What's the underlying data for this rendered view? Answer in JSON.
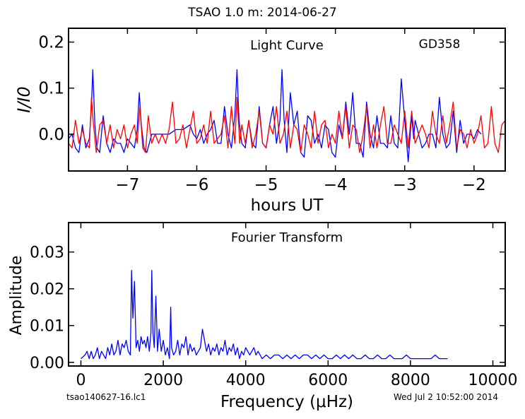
{
  "page_title": "TSAO 1.0 m:  2014-06-27",
  "footer": {
    "left": "tsao140627-16.lc1",
    "right": "Wed Jul  2 10:52:00 2014"
  },
  "colors": {
    "series1": "#0000ff",
    "series2": "#ff0000",
    "axes": "#000000"
  },
  "chart_data": [
    {
      "type": "line",
      "annotation": "Light Curve",
      "target_label": "GD358",
      "xlabel": "hours UT",
      "ylabel": "I/I0",
      "xlim": [
        -7.85,
        -1.55
      ],
      "ylim": [
        -0.08,
        0.23
      ],
      "xticks": [
        -7,
        -6,
        -5,
        -4,
        -3,
        -2
      ],
      "xtick_labels": [
        "−7",
        "−6",
        "−5",
        "−4",
        "−3",
        "−2"
      ],
      "yticks": [
        0.0,
        0.1,
        0.2
      ],
      "ytick_labels": [
        "0.0",
        "0.1",
        "0.2"
      ],
      "series": [
        {
          "color": "#0000ff",
          "x": [
            -7.85,
            -7.8,
            -7.75,
            -7.7,
            -7.65,
            -7.6,
            -7.55,
            -7.52,
            -7.5,
            -7.47,
            -7.44,
            -7.4,
            -7.35,
            -7.3,
            -7.25,
            -7.2,
            -7.15,
            -7.1,
            -7.05,
            -7.0,
            -6.95,
            -6.9,
            -6.86,
            -6.83,
            -6.8,
            -6.76,
            -6.72,
            -6.65,
            -6.6,
            -6.5,
            -6.4,
            -6.3,
            -6.2,
            -6.1,
            -6.05,
            -6.0,
            -5.95,
            -5.9,
            -5.85,
            -5.8,
            -5.75,
            -5.7,
            -5.65,
            -5.6,
            -5.55,
            -5.5,
            -5.45,
            -5.42,
            -5.39,
            -5.35,
            -5.3,
            -5.25,
            -5.2,
            -5.15,
            -5.1,
            -5.05,
            -5.0,
            -4.95,
            -4.9,
            -4.85,
            -4.8,
            -4.77,
            -4.74,
            -4.7,
            -4.65,
            -4.6,
            -4.55,
            -4.5,
            -4.45,
            -4.4,
            -4.35,
            -4.3,
            -4.25,
            -4.2,
            -4.15,
            -4.1,
            -4.05,
            -4.0,
            -3.95,
            -3.9,
            -3.85,
            -3.8,
            -3.75,
            -3.7,
            -3.65,
            -3.6,
            -3.55,
            -3.5,
            -3.45,
            -3.4,
            -3.35,
            -3.3,
            -3.25,
            -3.2,
            -3.15,
            -3.1,
            -3.05,
            -3.0,
            -2.95,
            -2.9,
            -2.87,
            -2.85,
            -2.8,
            -2.75,
            -2.7,
            -2.65,
            -2.6,
            -2.55,
            -2.5,
            -2.45,
            -2.4,
            -2.35,
            -2.3,
            -2.25,
            -2.2,
            -2.15,
            -2.1,
            -2.05,
            -2.0,
            -1.95,
            -1.9
          ],
          "y": [
            -0.01,
            0.0,
            -0.03,
            -0.04,
            0.02,
            -0.03,
            -0.01,
            0.06,
            0.14,
            0.02,
            -0.03,
            -0.04,
            0.04,
            -0.02,
            -0.04,
            -0.01,
            -0.02,
            -0.02,
            -0.04,
            -0.01,
            -0.02,
            -0.03,
            0.01,
            0.09,
            0.02,
            -0.03,
            -0.04,
            0.0,
            0.0,
            0.0,
            0.0,
            0.01,
            0.01,
            0.02,
            0.0,
            -0.01,
            0.01,
            -0.02,
            0.0,
            0.01,
            0.03,
            -0.02,
            -0.02,
            0.06,
            0.0,
            -0.03,
            0.04,
            0.14,
            0.03,
            -0.02,
            -0.03,
            0.03,
            -0.02,
            -0.03,
            0.06,
            -0.02,
            -0.03,
            0.02,
            0.06,
            -0.02,
            0.03,
            0.14,
            0.03,
            -0.04,
            0.09,
            0.02,
            0.05,
            -0.04,
            -0.05,
            0.04,
            0.03,
            -0.02,
            0.0,
            -0.03,
            0.02,
            0.01,
            -0.04,
            -0.05,
            0.02,
            -0.01,
            0.07,
            0.0,
            0.09,
            -0.02,
            -0.02,
            -0.05,
            0.07,
            0.0,
            -0.03,
            0.04,
            -0.02,
            -0.02,
            -0.03,
            0.04,
            -0.02,
            -0.03,
            0.12,
            0.03,
            -0.06,
            0.04,
            -0.01,
            0.03,
            0.0,
            -0.03,
            -0.02,
            0.0,
            0.0,
            -0.03,
            0.08,
            0.0,
            -0.03,
            -0.02,
            0.05,
            -0.04,
            0.03,
            -0.02,
            0.0,
            0.0,
            -0.01,
            0.01,
            0.0
          ]
        },
        {
          "color": "#ff0000",
          "x": [
            -7.85,
            -7.8,
            -7.75,
            -7.7,
            -7.65,
            -7.6,
            -7.55,
            -7.52,
            -7.49,
            -7.45,
            -7.4,
            -7.35,
            -7.3,
            -7.25,
            -7.2,
            -7.15,
            -7.1,
            -7.05,
            -7.0,
            -6.95,
            -6.9,
            -6.86,
            -6.82,
            -6.78,
            -6.74,
            -6.7,
            -6.65,
            -6.6,
            -6.55,
            -6.5,
            -6.45,
            -6.4,
            -6.35,
            -6.3,
            -6.25,
            -6.2,
            -6.15,
            -6.1,
            -6.05,
            -6.0,
            -5.95,
            -5.9,
            -5.85,
            -5.8,
            -5.75,
            -5.7,
            -5.65,
            -5.6,
            -5.55,
            -5.5,
            -5.45,
            -5.42,
            -5.38,
            -5.35,
            -5.3,
            -5.25,
            -5.2,
            -5.15,
            -5.1,
            -5.05,
            -5.0,
            -4.95,
            -4.9,
            -4.85,
            -4.8,
            -4.75,
            -4.7,
            -4.65,
            -4.6,
            -4.55,
            -4.5,
            -4.45,
            -4.4,
            -4.35,
            -4.3,
            -4.25,
            -4.2,
            -4.15,
            -4.1,
            -4.05,
            -4.0,
            -3.95,
            -3.9,
            -3.85,
            -3.8,
            -3.75,
            -3.7,
            -3.65,
            -3.6,
            -3.55,
            -3.5,
            -3.45,
            -3.4,
            -3.35,
            -3.3,
            -3.25,
            -3.2,
            -3.15,
            -3.1,
            -3.05,
            -3.0,
            -2.95,
            -2.9,
            -2.85,
            -2.8,
            -2.75,
            -2.7,
            -2.65,
            -2.6,
            -2.55,
            -2.5,
            -2.45,
            -2.4,
            -2.35,
            -2.3,
            -2.25,
            -2.2,
            -2.15,
            -2.1,
            -2.05,
            -2.0,
            -1.95,
            -1.9,
            -1.85,
            -1.8,
            -1.75,
            -1.7,
            -1.65,
            -1.6,
            -1.55
          ],
          "y": [
            -0.02,
            -0.03,
            0.03,
            -0.02,
            0.01,
            -0.02,
            -0.03,
            0.08,
            0.02,
            -0.04,
            0.02,
            0.03,
            -0.02,
            0.02,
            -0.03,
            0.01,
            -0.01,
            0.02,
            -0.03,
            0.0,
            0.02,
            -0.02,
            0.06,
            -0.03,
            -0.04,
            0.04,
            -0.02,
            0.0,
            -0.02,
            0.0,
            -0.02,
            0.01,
            0.07,
            -0.02,
            -0.01,
            0.02,
            -0.03,
            0.01,
            0.05,
            -0.02,
            -0.01,
            0.02,
            -0.02,
            0.05,
            -0.02,
            -0.01,
            0.0,
            0.04,
            -0.03,
            0.06,
            -0.02,
            0.08,
            -0.02,
            0.02,
            -0.02,
            0.03,
            -0.03,
            0.0,
            0.05,
            -0.02,
            -0.03,
            0.02,
            0.0,
            0.06,
            -0.02,
            0.0,
            0.05,
            -0.03,
            0.02,
            0.01,
            -0.04,
            0.02,
            0.0,
            -0.03,
            0.05,
            -0.02,
            0.02,
            0.03,
            -0.03,
            0.0,
            -0.02,
            0.05,
            -0.01,
            0.06,
            -0.03,
            0.02,
            0.01,
            -0.04,
            0.0,
            0.06,
            -0.03,
            0.02,
            -0.03,
            0.02,
            0.06,
            -0.02,
            -0.02,
            0.02,
            0.0,
            -0.02,
            0.05,
            -0.03,
            0.05,
            -0.02,
            0.0,
            0.02,
            0.0,
            -0.03,
            0.05,
            0.0,
            -0.02,
            0.04,
            -0.02,
            0.02,
            0.07,
            -0.03,
            0.01,
            0.0,
            -0.03,
            0.01,
            -0.02,
            0.0,
            0.04,
            -0.03,
            -0.02,
            0.06,
            -0.02,
            -0.04,
            0.02,
            0.03
          ]
        }
      ]
    },
    {
      "type": "line",
      "annotation": "Fourier Transform",
      "xlabel": "Frequency (μHz)",
      "ylabel": "Amplitude",
      "xlim": [
        -300,
        10300
      ],
      "ylim": [
        -0.001,
        0.038
      ],
      "xticks": [
        0,
        2000,
        4000,
        6000,
        8000,
        10000
      ],
      "xtick_labels": [
        "0",
        "2000",
        "4000",
        "6000",
        "8000",
        "10000"
      ],
      "yticks": [
        0.0,
        0.01,
        0.02,
        0.03
      ],
      "ytick_labels": [
        "0.00",
        "0.01",
        "0.02",
        "0.03"
      ],
      "series": [
        {
          "color": "#0000ff",
          "x": [
            0,
            100,
            150,
            200,
            250,
            300,
            350,
            400,
            450,
            500,
            550,
            600,
            650,
            700,
            750,
            800,
            850,
            900,
            950,
            1000,
            1050,
            1100,
            1150,
            1200,
            1230,
            1260,
            1300,
            1340,
            1380,
            1420,
            1460,
            1500,
            1540,
            1580,
            1620,
            1660,
            1700,
            1720,
            1750,
            1780,
            1820,
            1860,
            1900,
            1950,
            2000,
            2050,
            2100,
            2150,
            2180,
            2200,
            2250,
            2300,
            2350,
            2400,
            2450,
            2500,
            2550,
            2600,
            2650,
            2700,
            2750,
            2800,
            2850,
            2900,
            2950,
            3000,
            3050,
            3100,
            3150,
            3200,
            3250,
            3300,
            3350,
            3400,
            3450,
            3500,
            3550,
            3600,
            3650,
            3700,
            3750,
            3800,
            3850,
            3900,
            3950,
            4000,
            4050,
            4100,
            4150,
            4200,
            4250,
            4300,
            4400,
            4500,
            4600,
            4700,
            4800,
            4900,
            5000,
            5100,
            5200,
            5300,
            5400,
            5500,
            5600,
            5700,
            5800,
            5900,
            6000,
            6100,
            6200,
            6300,
            6400,
            6500,
            6600,
            6700,
            6800,
            6900,
            7000,
            7100,
            7200,
            7300,
            7400,
            7500,
            7600,
            7700,
            7800,
            7900,
            8000,
            8100,
            8200,
            8300,
            8400,
            8500,
            8600,
            8700,
            8800,
            8900
          ],
          "y": [
            0.001,
            0.002,
            0.003,
            0.001,
            0.003,
            0.001,
            0.002,
            0.004,
            0.001,
            0.003,
            0.002,
            0.001,
            0.004,
            0.002,
            0.005,
            0.002,
            0.003,
            0.006,
            0.002,
            0.005,
            0.004,
            0.006,
            0.003,
            0.002,
            0.025,
            0.012,
            0.022,
            0.004,
            0.006,
            0.003,
            0.007,
            0.005,
            0.006,
            0.004,
            0.007,
            0.003,
            0.008,
            0.025,
            0.008,
            0.004,
            0.018,
            0.003,
            0.009,
            0.003,
            0.006,
            0.002,
            0.004,
            0.001,
            0.015,
            0.004,
            0.002,
            0.003,
            0.006,
            0.002,
            0.005,
            0.004,
            0.007,
            0.002,
            0.005,
            0.003,
            0.004,
            0.002,
            0.003,
            0.004,
            0.009,
            0.006,
            0.003,
            0.005,
            0.002,
            0.004,
            0.003,
            0.005,
            0.002,
            0.004,
            0.003,
            0.006,
            0.002,
            0.004,
            0.003,
            0.005,
            0.002,
            0.004,
            0.001,
            0.003,
            0.002,
            0.004,
            0.003,
            0.002,
            0.003,
            0.004,
            0.002,
            0.003,
            0.001,
            0.002,
            0.001,
            0.002,
            0.002,
            0.001,
            0.002,
            0.001,
            0.002,
            0.001,
            0.002,
            0.002,
            0.001,
            0.002,
            0.001,
            0.002,
            0.001,
            0.001,
            0.002,
            0.001,
            0.002,
            0.001,
            0.002,
            0.001,
            0.001,
            0.002,
            0.001,
            0.001,
            0.002,
            0.001,
            0.001,
            0.002,
            0.001,
            0.001,
            0.001,
            0.002,
            0.001,
            0.001,
            0.001,
            0.001,
            0.001,
            0.001,
            0.002,
            0.001,
            0.001,
            0.001
          ]
        }
      ]
    }
  ]
}
